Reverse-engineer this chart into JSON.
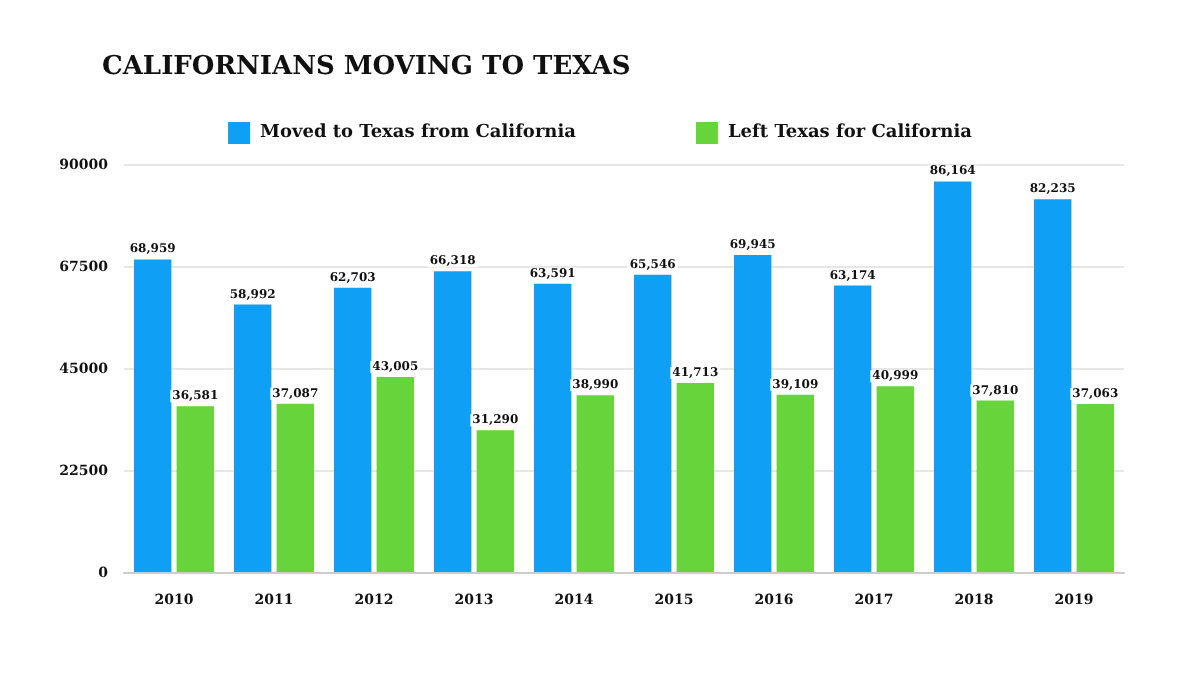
{
  "chart_data": {
    "type": "bar",
    "title": "CALIFORNIANS MOVING TO TEXAS",
    "categories": [
      "2010",
      "2011",
      "2012",
      "2013",
      "2014",
      "2015",
      "2016",
      "2017",
      "2018",
      "2019"
    ],
    "series": [
      {
        "name": "Moved to Texas from California",
        "color": "#0fa0f5",
        "values": [
          68959,
          58992,
          62703,
          66318,
          63591,
          65546,
          69945,
          63174,
          86164,
          82235
        ],
        "value_labels": [
          "68,959",
          "58,992",
          "62,703",
          "66,318",
          "63,591",
          "65,546",
          "69,945",
          "63,174",
          "86,164",
          "82,235"
        ]
      },
      {
        "name": "Left Texas for California",
        "color": "#66d43a",
        "values": [
          36581,
          37087,
          43005,
          31290,
          38990,
          41713,
          39109,
          40999,
          37810,
          37063
        ],
        "value_labels": [
          "36,581",
          "37,087",
          "43,005",
          "31,290",
          "38,990",
          "41,713",
          "39,109",
          "40,999",
          "37,810",
          "37,063"
        ]
      }
    ],
    "ylim": [
      0,
      90000
    ],
    "yticks": [
      0,
      22500,
      45000,
      67500,
      90000
    ],
    "grid": "y",
    "legend": "top"
  }
}
